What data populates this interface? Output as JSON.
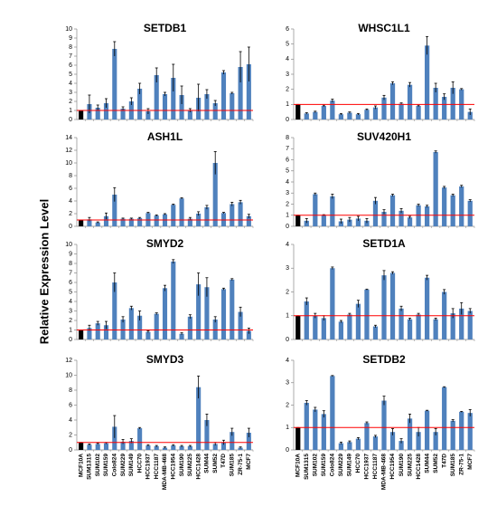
{
  "y_label": "Relative Expression Level",
  "chart_data": [
    {
      "type": "bar",
      "title": "SETDB1",
      "color": "#4f81bd",
      "control_color": "#000000",
      "reference_line": 1,
      "reference_color": "#ff0000",
      "ylim": [
        0,
        10
      ],
      "yticks": [
        0,
        1,
        2,
        3,
        4,
        5,
        6,
        7,
        8,
        9,
        10
      ],
      "categories": [
        null,
        null,
        null,
        null,
        null,
        null,
        null,
        null,
        null,
        null,
        null,
        null,
        null,
        null,
        null,
        null,
        null,
        null,
        null,
        null,
        null
      ],
      "values": [
        1,
        1.7,
        1.3,
        1.8,
        7.8,
        1.2,
        2,
        3.4,
        0.9,
        4.9,
        2.8,
        4.6,
        2.7,
        1,
        2.4,
        2.8,
        1.8,
        5.2,
        2.9,
        5.8,
        6.1
      ],
      "errors": [
        0,
        1,
        0.3,
        0.5,
        0.8,
        0.2,
        0.4,
        0.6,
        0.3,
        0.8,
        0.2,
        1.5,
        1,
        0.2,
        1.5,
        0.5,
        0.3,
        0.2,
        0.1,
        1.7,
        1.9
      ]
    },
    {
      "type": "bar",
      "title": "WHSC1L1",
      "color": "#4f81bd",
      "control_color": "#000000",
      "reference_line": 1,
      "reference_color": "#ff0000",
      "ylim": [
        0,
        6
      ],
      "yticks": [
        0,
        1,
        2,
        3,
        4,
        5,
        6
      ],
      "categories": [
        null,
        null,
        null,
        null,
        null,
        null,
        null,
        null,
        null,
        null,
        null,
        null,
        null,
        null,
        null,
        null,
        null,
        null,
        null,
        null,
        null
      ],
      "values": [
        1,
        0.4,
        0.5,
        0.9,
        1.25,
        0.35,
        0.45,
        0.35,
        0.65,
        0.8,
        1.45,
        2.4,
        1.05,
        2.3,
        0.9,
        4.9,
        2.1,
        1.5,
        2.1,
        2,
        0.5
      ],
      "errors": [
        0,
        0.05,
        0.05,
        0.05,
        0.1,
        0.05,
        0.05,
        0.05,
        0.05,
        0.1,
        0.15,
        0.1,
        0.05,
        0.15,
        0.05,
        0.6,
        0.3,
        0.2,
        0.4,
        0.05,
        0.2
      ]
    },
    {
      "type": "bar",
      "title": "ASH1L",
      "color": "#4f81bd",
      "control_color": "#000000",
      "reference_line": 1,
      "reference_color": "#ff0000",
      "ylim": [
        0,
        14
      ],
      "yticks": [
        0,
        2,
        4,
        6,
        8,
        10,
        12,
        14
      ],
      "categories": [
        null,
        null,
        null,
        null,
        null,
        null,
        null,
        null,
        null,
        null,
        null,
        null,
        null,
        null,
        null,
        null,
        null,
        null,
        null,
        null,
        null
      ],
      "values": [
        1,
        1.1,
        0.6,
        1.6,
        5,
        1.2,
        1.2,
        1.3,
        2.1,
        1.7,
        1.9,
        3.4,
        4.4,
        1.2,
        2,
        3,
        10,
        2.1,
        3.5,
        3.8,
        1.6
      ],
      "errors": [
        0,
        0.3,
        0.1,
        0.5,
        1.1,
        0.1,
        0.1,
        0.1,
        0.1,
        0.1,
        0.1,
        0.1,
        0.1,
        0.2,
        0.3,
        0.3,
        1.8,
        0.1,
        0.3,
        0.3,
        0.3
      ]
    },
    {
      "type": "bar",
      "title": "SUV420H1",
      "color": "#4f81bd",
      "control_color": "#000000",
      "reference_line": 1,
      "reference_color": "#ff0000",
      "ylim": [
        0,
        8
      ],
      "yticks": [
        0,
        1,
        2,
        3,
        4,
        5,
        6,
        7,
        8
      ],
      "categories": [
        null,
        null,
        null,
        null,
        null,
        null,
        null,
        null,
        null,
        null,
        null,
        null,
        null,
        null,
        null,
        null,
        null,
        null,
        null,
        null,
        null
      ],
      "values": [
        1,
        0.5,
        2.9,
        1,
        2.7,
        0.45,
        0.6,
        0.7,
        0.5,
        2.3,
        1.3,
        2.8,
        1.4,
        0.8,
        1.9,
        1.8,
        6.7,
        3.5,
        2.8,
        3.6,
        2.3
      ],
      "errors": [
        0,
        0.2,
        0.1,
        0.05,
        0.2,
        0.2,
        0.2,
        0.2,
        0.2,
        0.3,
        0.2,
        0.1,
        0.2,
        0.1,
        0.1,
        0.1,
        0.1,
        0.1,
        0.1,
        0.1,
        0.1
      ]
    },
    {
      "type": "bar",
      "title": "SMYD2",
      "color": "#4f81bd",
      "control_color": "#000000",
      "reference_line": 1,
      "reference_color": "#ff0000",
      "ylim": [
        0,
        10
      ],
      "yticks": [
        0,
        1,
        2,
        3,
        4,
        5,
        6,
        7,
        8,
        9,
        10
      ],
      "categories": [
        null,
        null,
        null,
        null,
        null,
        null,
        null,
        null,
        null,
        null,
        null,
        null,
        null,
        null,
        null,
        null,
        null,
        null,
        null,
        null,
        null
      ],
      "values": [
        1,
        1.2,
        1.7,
        1.5,
        6,
        2.1,
        3.3,
        2.5,
        0.8,
        2.7,
        5.4,
        8.2,
        0.6,
        2.4,
        5.8,
        5.5,
        2.1,
        5.3,
        6.3,
        2.9,
        0.9
      ],
      "errors": [
        0,
        0.3,
        0.2,
        0.4,
        1,
        0.3,
        0.2,
        0.5,
        0.1,
        0.1,
        0.3,
        0.2,
        0.1,
        0.2,
        1.2,
        1,
        0.3,
        0.1,
        0.1,
        0.5,
        0.3
      ]
    },
    {
      "type": "bar",
      "title": "SETD1A",
      "color": "#4f81bd",
      "control_color": "#000000",
      "reference_line": 1,
      "reference_color": "#ff0000",
      "ylim": [
        0,
        4
      ],
      "yticks": [
        0,
        1,
        2,
        3,
        4
      ],
      "categories": [
        null,
        null,
        null,
        null,
        null,
        null,
        null,
        null,
        null,
        null,
        null,
        null,
        null,
        null,
        null,
        null,
        null,
        null,
        null,
        null,
        null
      ],
      "values": [
        1,
        1.6,
        1,
        0.9,
        3,
        0.75,
        1.05,
        1.5,
        2.1,
        0.55,
        2.7,
        2.8,
        1.3,
        0.85,
        1.05,
        2.6,
        0.85,
        2,
        1.1,
        1.3,
        1.2
      ],
      "errors": [
        0,
        0.15,
        0.1,
        0.1,
        0.05,
        0.05,
        0.05,
        0.15,
        0.02,
        0.05,
        0.2,
        0.05,
        0.1,
        0.05,
        0.05,
        0.1,
        0.05,
        0.1,
        0.2,
        0.25,
        0.1
      ]
    },
    {
      "type": "bar",
      "title": "SMYD3",
      "color": "#4f81bd",
      "control_color": "#000000",
      "reference_line": 1,
      "reference_color": "#ff0000",
      "ylim": [
        0,
        12
      ],
      "yticks": [
        0,
        2,
        4,
        6,
        8,
        10,
        12
      ],
      "categories": [
        "MCF10A",
        "SUM1315",
        "SUM102",
        "SUM159",
        "Colo824",
        "SUM229",
        "SUM149",
        "HCC70",
        "HCC1937",
        "HCC1187",
        "MDA-MB-468",
        "HCC1954",
        "SUM190",
        "SUM225",
        "HCC1428",
        "SUM44",
        "SUM52",
        "T47D",
        "SUM185",
        "ZR-75-1",
        "MCF7"
      ],
      "category_colors": [
        "#000000",
        "#e0101e",
        "#e0101e",
        "#e0101e",
        "#e0101e",
        "#e0101e",
        "#e0101e",
        "#e0101e",
        "#e0101e",
        "#e0101e",
        "#e0101e",
        "#0b7a34",
        "#0b7a34",
        "#0b7a34",
        "#1f6ec0",
        "#1f6ec0",
        "#1f6ec0",
        "#1f6ec0",
        "#1f6ec0",
        "#1f6ec0",
        "#1f6ec0"
      ],
      "values": [
        1,
        0.7,
        0.8,
        0.9,
        3.1,
        1.1,
        1.2,
        2.9,
        0.6,
        0.5,
        0.3,
        0.6,
        0.5,
        0.5,
        8.4,
        4,
        0.8,
        1,
        2.4,
        0.3,
        2.3
      ],
      "errors": [
        0,
        0.1,
        0.1,
        0.1,
        1.5,
        0.3,
        0.3,
        0.1,
        0.1,
        0.1,
        0.1,
        0.1,
        0.1,
        0.1,
        1.5,
        0.8,
        0.2,
        0.3,
        0.5,
        0.1,
        0.6
      ]
    },
    {
      "type": "bar",
      "title": "SETDB2",
      "color": "#4f81bd",
      "control_color": "#000000",
      "reference_line": 1,
      "reference_color": "#ff0000",
      "ylim": [
        0,
        4
      ],
      "yticks": [
        0,
        1,
        2,
        3,
        4
      ],
      "categories": [
        "MCF10A",
        "SUM1315",
        "SUM102",
        "SUM159",
        "Colo824",
        "SUM229",
        "SUM149",
        "HCC70",
        "HCC1937",
        "HCC1187",
        "MDA-MB-468",
        "HCC1954",
        "SUM190",
        "SUM225",
        "HCC1428",
        "SUM44",
        "SUM52",
        "T47D",
        "SUM185",
        "ZR-75-1",
        "MCF7"
      ],
      "category_colors": [
        "#000000",
        "#e0101e",
        "#e0101e",
        "#e0101e",
        "#e0101e",
        "#e0101e",
        "#e0101e",
        "#e0101e",
        "#e0101e",
        "#e0101e",
        "#e0101e",
        "#0b7a34",
        "#0b7a34",
        "#0b7a34",
        "#1f6ec0",
        "#1f6ec0",
        "#1f6ec0",
        "#1f6ec0",
        "#1f6ec0",
        "#1f6ec0",
        "#1f6ec0"
      ],
      "values": [
        1,
        2.1,
        1.8,
        1.6,
        3.3,
        0.3,
        0.35,
        0.5,
        1.2,
        0.6,
        2.2,
        0.8,
        0.4,
        1.4,
        0.8,
        1.75,
        0.8,
        2.8,
        1.3,
        1.7,
        1.65
      ],
      "errors": [
        0,
        0.1,
        0.1,
        0.15,
        0.02,
        0.05,
        0.05,
        0.05,
        0.05,
        0.05,
        0.2,
        0.15,
        0.1,
        0.2,
        0.2,
        0.02,
        0.15,
        0.02,
        0.05,
        0.02,
        0.15
      ]
    }
  ]
}
